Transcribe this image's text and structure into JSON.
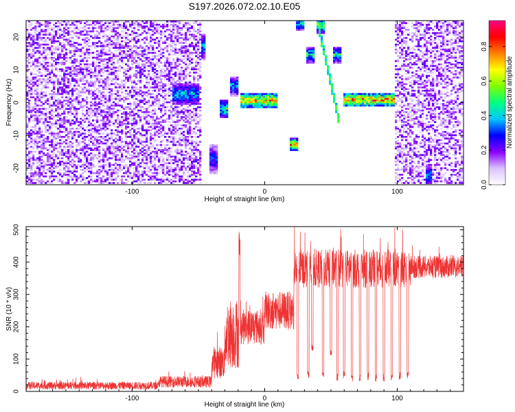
{
  "title": "S197.2026.072.02.10.E05",
  "chart_data": [
    {
      "type": "heatmap",
      "xlabel": "Height of straight line (km)",
      "ylabel": "Frequency (Hz)",
      "xlim": [
        -180,
        150
      ],
      "ylim": [
        -25,
        25
      ],
      "xticks": [
        -100,
        0,
        100
      ],
      "yticks": [
        -20,
        -10,
        0,
        10,
        20
      ],
      "colorbar": {
        "label": "Normalized spectral amplitude",
        "range": [
          0,
          0.95
        ],
        "ticks": [
          "0.0",
          "0.2",
          "0.4",
          "0.6",
          "0.8"
        ],
        "colormap": [
          "#ffffff",
          "#d9c2ff",
          "#8a00ff",
          "#0000ff",
          "#00c8ff",
          "#00ff80",
          "#7fff00",
          "#ffff00",
          "#ff8000",
          "#ff0000",
          "#ff0080"
        ]
      },
      "noise_regions": [
        {
          "x": [
            -180,
            -47
          ],
          "density": 0.55
        },
        {
          "x": [
            98,
            150
          ],
          "density": 0.5
        }
      ],
      "features": [
        {
          "x": [
            -70,
            -50
          ],
          "y": [
            0,
            5
          ],
          "peak": 0.45
        },
        {
          "x": [
            -48,
            -44
          ],
          "y": [
            14,
            20
          ],
          "peak": 0.45
        },
        {
          "x": [
            -41,
            -36
          ],
          "y": [
            -21,
            -14
          ],
          "peak": 0.35
        },
        {
          "x": [
            -34,
            -28
          ],
          "y": [
            -4,
            0
          ],
          "peak": 0.55
        },
        {
          "x": [
            -26,
            -20
          ],
          "y": [
            3,
            7
          ],
          "peak": 0.45
        },
        {
          "x": [
            -18,
            10
          ],
          "y": [
            -1,
            2
          ],
          "peak": 0.85
        },
        {
          "x": [
            19,
            25
          ],
          "y": [
            -14,
            -12
          ],
          "peak": 0.85
        },
        {
          "x": [
            24,
            30
          ],
          "y": [
            23,
            25
          ],
          "peak": 0.5
        },
        {
          "x": [
            32,
            38
          ],
          "y": [
            13,
            16
          ],
          "peak": 0.55
        },
        {
          "x": [
            40,
            46
          ],
          "y": [
            22,
            25
          ],
          "peak": 0.6
        },
        {
          "x": [
            52,
            58
          ],
          "y": [
            13,
            16
          ],
          "peak": 0.55
        },
        {
          "x": [
            60,
            98
          ],
          "y": [
            -0.5,
            2
          ],
          "peak": 0.9
        },
        {
          "x": [
            122,
            126
          ],
          "y": [
            -25,
            -20
          ],
          "peak": 0.4
        }
      ],
      "chirps": [
        {
          "x0": 40,
          "x1": 56,
          "y0": 25,
          "y1": -5,
          "peak": 0.55
        }
      ]
    },
    {
      "type": "line",
      "xlabel": "Height of straight line (km)",
      "ylabel": "SNR (10 * v/v)",
      "xlim": [
        -180,
        150
      ],
      "ylim": [
        0,
        510
      ],
      "xticks": [
        -100,
        0,
        100
      ],
      "yticks": [
        0,
        100,
        200,
        300,
        400,
        500
      ],
      "color": "#ee3333",
      "segments": [
        {
          "x": [
            -180,
            -80
          ],
          "base": 18,
          "noise": 12
        },
        {
          "x": [
            -80,
            -40
          ],
          "base": 30,
          "noise": 18
        },
        {
          "x": [
            -40,
            -30
          ],
          "base": 90,
          "noise": 50
        },
        {
          "x": [
            -30,
            -18
          ],
          "base": 180,
          "noise": 110
        },
        {
          "x": [
            -18,
            0
          ],
          "base": 200,
          "noise": 55
        },
        {
          "x": [
            0,
            22
          ],
          "base": 250,
          "noise": 60
        },
        {
          "x": [
            22,
            110
          ],
          "base": 380,
          "noise": 60
        },
        {
          "x": [
            110,
            150
          ],
          "base": 385,
          "noise": 35
        }
      ],
      "spikes": [
        {
          "x": -19,
          "y": 510
        }
      ],
      "dips": [
        {
          "x": 25,
          "y": 30
        },
        {
          "x": 33,
          "y": 40
        },
        {
          "x": 36,
          "y": 120
        },
        {
          "x": 44,
          "y": 35
        },
        {
          "x": 50,
          "y": 110
        },
        {
          "x": 55,
          "y": 30
        },
        {
          "x": 60,
          "y": 40
        },
        {
          "x": 66,
          "y": 30
        },
        {
          "x": 72,
          "y": 30
        },
        {
          "x": 78,
          "y": 35
        },
        {
          "x": 84,
          "y": 30
        },
        {
          "x": 90,
          "y": 30
        },
        {
          "x": 96,
          "y": 30
        },
        {
          "x": 102,
          "y": 35
        },
        {
          "x": 108,
          "y": 35
        }
      ]
    }
  ]
}
